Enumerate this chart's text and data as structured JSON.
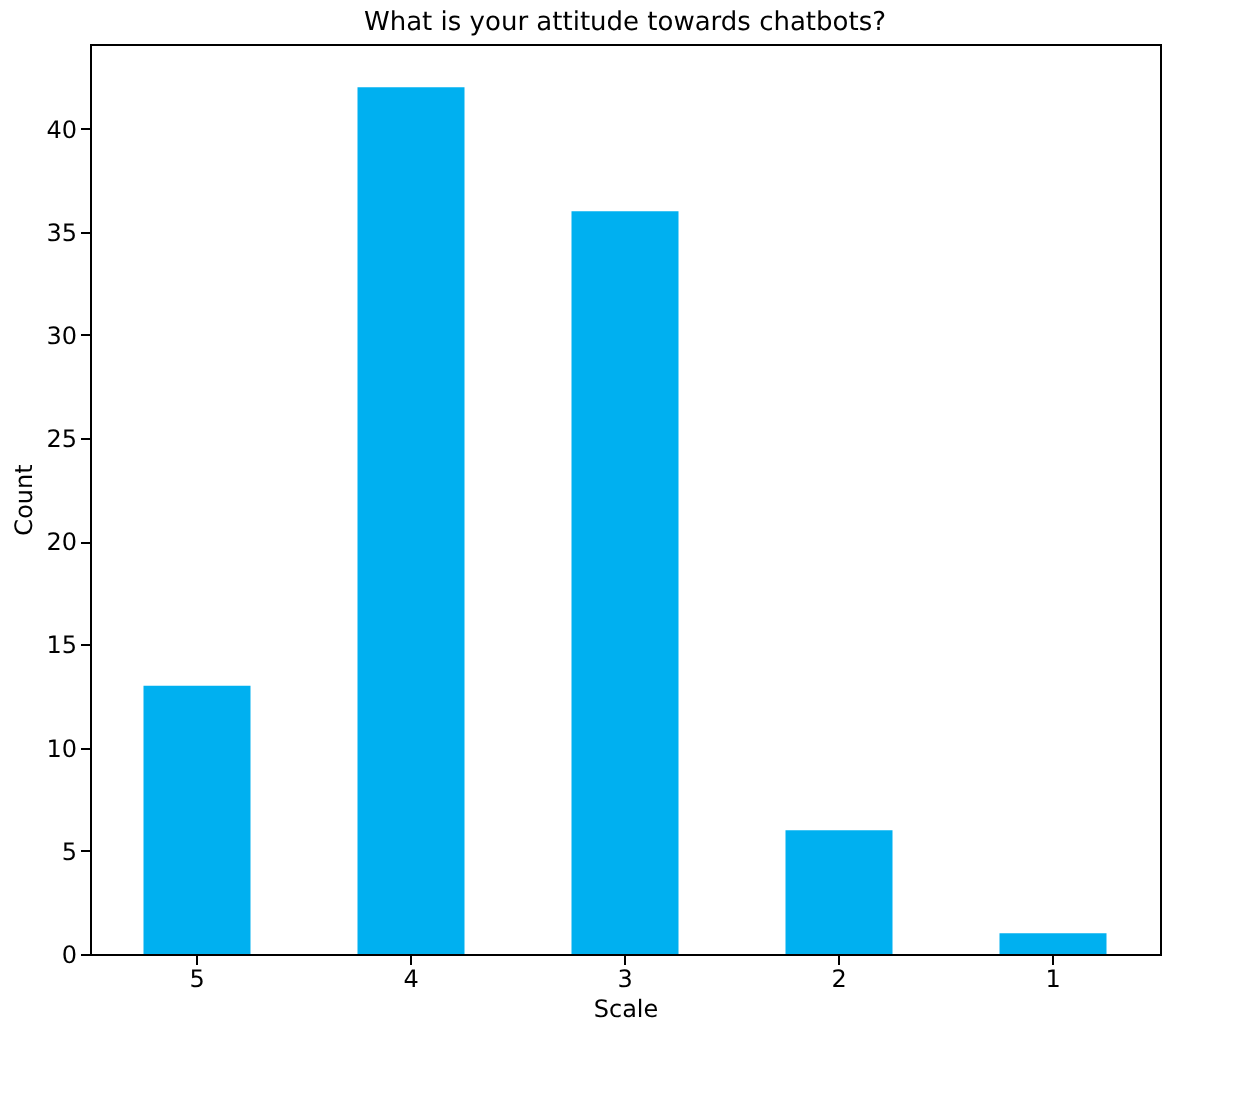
{
  "chart_data": {
    "type": "bar",
    "title": "What is your attitude towards chatbots?",
    "xlabel": "Scale",
    "ylabel": "Count",
    "categories": [
      "5",
      "4",
      "3",
      "2",
      "1"
    ],
    "values": [
      13,
      42,
      36,
      6,
      1
    ],
    "color": "#00b0f0",
    "ylim": [
      0,
      44.1
    ],
    "yticks": [
      0,
      5,
      10,
      15,
      20,
      25,
      30,
      35,
      40
    ],
    "grid": false
  }
}
